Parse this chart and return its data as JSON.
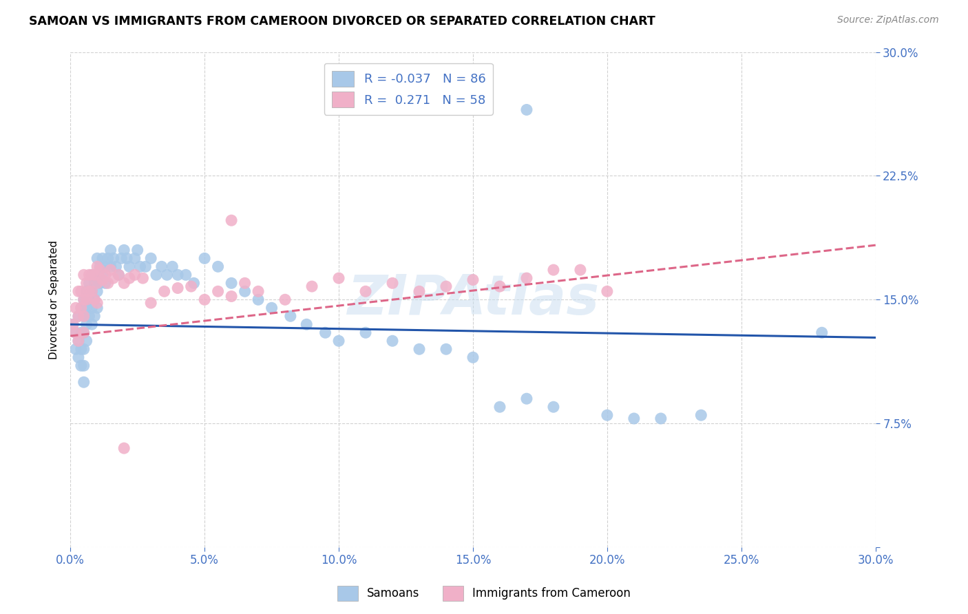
{
  "title": "SAMOAN VS IMMIGRANTS FROM CAMEROON DIVORCED OR SEPARATED CORRELATION CHART",
  "source": "Source: ZipAtlas.com",
  "xmin": 0.0,
  "xmax": 0.3,
  "ymin": 0.0,
  "ymax": 0.3,
  "legend_label1": "Samoans",
  "legend_label2": "Immigrants from Cameroon",
  "R1": "-0.037",
  "N1": "86",
  "R2": "0.271",
  "N2": "58",
  "color_blue": "#a8c8e8",
  "color_pink": "#f0b0c8",
  "line_blue": "#2255aa",
  "line_pink": "#dd6688",
  "ylabel": "Divorced or Separated",
  "blue_line_start": 0.135,
  "blue_line_end": 0.127,
  "pink_line_start": 0.128,
  "pink_line_end": 0.183,
  "samoan_x": [
    0.001,
    0.002,
    0.002,
    0.003,
    0.003,
    0.003,
    0.004,
    0.004,
    0.004,
    0.004,
    0.005,
    0.005,
    0.005,
    0.005,
    0.005,
    0.005,
    0.006,
    0.006,
    0.006,
    0.006,
    0.007,
    0.007,
    0.007,
    0.008,
    0.008,
    0.008,
    0.008,
    0.009,
    0.009,
    0.009,
    0.01,
    0.01,
    0.01,
    0.01,
    0.011,
    0.011,
    0.012,
    0.012,
    0.013,
    0.013,
    0.014,
    0.015,
    0.015,
    0.016,
    0.017,
    0.018,
    0.019,
    0.02,
    0.021,
    0.022,
    0.024,
    0.025,
    0.026,
    0.028,
    0.03,
    0.032,
    0.034,
    0.036,
    0.038,
    0.04,
    0.043,
    0.046,
    0.05,
    0.055,
    0.06,
    0.065,
    0.07,
    0.075,
    0.082,
    0.088,
    0.095,
    0.1,
    0.11,
    0.12,
    0.13,
    0.14,
    0.15,
    0.16,
    0.17,
    0.18,
    0.2,
    0.21,
    0.22,
    0.235,
    0.28,
    0.17
  ],
  "samoan_y": [
    0.135,
    0.12,
    0.13,
    0.14,
    0.125,
    0.115,
    0.145,
    0.13,
    0.12,
    0.11,
    0.15,
    0.14,
    0.13,
    0.12,
    0.11,
    0.1,
    0.155,
    0.145,
    0.135,
    0.125,
    0.16,
    0.15,
    0.14,
    0.165,
    0.155,
    0.145,
    0.135,
    0.16,
    0.15,
    0.14,
    0.175,
    0.165,
    0.155,
    0.145,
    0.17,
    0.16,
    0.175,
    0.165,
    0.17,
    0.16,
    0.175,
    0.18,
    0.17,
    0.175,
    0.17,
    0.165,
    0.175,
    0.18,
    0.175,
    0.17,
    0.175,
    0.18,
    0.17,
    0.17,
    0.175,
    0.165,
    0.17,
    0.165,
    0.17,
    0.165,
    0.165,
    0.16,
    0.175,
    0.17,
    0.16,
    0.155,
    0.15,
    0.145,
    0.14,
    0.135,
    0.13,
    0.125,
    0.13,
    0.125,
    0.12,
    0.12,
    0.115,
    0.085,
    0.09,
    0.085,
    0.08,
    0.078,
    0.078,
    0.08,
    0.13,
    0.265
  ],
  "cameroon_x": [
    0.001,
    0.002,
    0.002,
    0.003,
    0.003,
    0.003,
    0.004,
    0.004,
    0.005,
    0.005,
    0.005,
    0.005,
    0.006,
    0.006,
    0.007,
    0.007,
    0.008,
    0.008,
    0.009,
    0.009,
    0.01,
    0.01,
    0.01,
    0.011,
    0.012,
    0.013,
    0.014,
    0.015,
    0.016,
    0.018,
    0.02,
    0.022,
    0.024,
    0.027,
    0.03,
    0.035,
    0.04,
    0.045,
    0.05,
    0.055,
    0.06,
    0.065,
    0.07,
    0.08,
    0.09,
    0.1,
    0.11,
    0.12,
    0.13,
    0.14,
    0.15,
    0.16,
    0.17,
    0.18,
    0.19,
    0.2,
    0.02,
    0.06
  ],
  "cameroon_y": [
    0.135,
    0.145,
    0.13,
    0.155,
    0.14,
    0.125,
    0.155,
    0.145,
    0.165,
    0.15,
    0.14,
    0.13,
    0.16,
    0.15,
    0.165,
    0.155,
    0.165,
    0.155,
    0.165,
    0.15,
    0.17,
    0.16,
    0.148,
    0.168,
    0.162,
    0.165,
    0.16,
    0.168,
    0.163,
    0.165,
    0.16,
    0.163,
    0.165,
    0.163,
    0.148,
    0.155,
    0.157,
    0.158,
    0.15,
    0.155,
    0.152,
    0.16,
    0.155,
    0.15,
    0.158,
    0.163,
    0.155,
    0.16,
    0.155,
    0.158,
    0.162,
    0.158,
    0.163,
    0.168,
    0.168,
    0.155,
    0.06,
    0.198
  ]
}
